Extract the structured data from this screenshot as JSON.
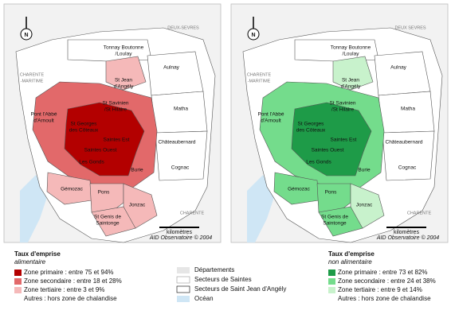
{
  "maps": [
    {
      "north": "N",
      "neighbors": [
        [
          "DEUX-SEVRES"
        ],
        [
          "CHARENTE",
          "-MARITIME"
        ],
        [
          "CHARENTE"
        ]
      ],
      "scale_label": "kilomètres",
      "credit": "AID Observatoire © 2004"
    },
    {
      "north": "N",
      "neighbors": [
        [
          "DEUX SEVRES"
        ],
        [
          "CHARENTE",
          "-MARITIME"
        ],
        [
          "CHARENTE"
        ]
      ],
      "scale_label": "kilomètres",
      "credit": "AID Observatoire © 2004"
    }
  ],
  "regions": [
    {
      "lines": [
        "Tonnay Boutonne",
        "/Loulay"
      ]
    },
    {
      "lines": [
        "Aulnay"
      ]
    },
    {
      "lines": [
        "St Jean",
        "d'Angély"
      ]
    },
    {
      "lines": [
        "St Savinien",
        "/St Hilaire"
      ]
    },
    {
      "lines": [
        "Matha"
      ]
    },
    {
      "lines": [
        "Pont l'Abbé",
        "d'Arnoult"
      ]
    },
    {
      "lines": [
        "St Georges",
        "des Côteaux"
      ]
    },
    {
      "lines": [
        "Saintes Est"
      ]
    },
    {
      "lines": [
        "Saintes Ouest"
      ]
    },
    {
      "lines": [
        "Les Gonds"
      ]
    },
    {
      "lines": [
        "Burie"
      ]
    },
    {
      "lines": [
        "Châteaubernard"
      ]
    },
    {
      "lines": [
        "Cognac"
      ]
    },
    {
      "lines": [
        "Gémozac"
      ]
    },
    {
      "lines": [
        "Pons"
      ]
    },
    {
      "lines": [
        "Jonzac"
      ]
    },
    {
      "lines": [
        "St Genis de",
        "Saintonge"
      ]
    }
  ],
  "legends": [
    {
      "title": "Taux d'emprise",
      "subtitle": "alimentaire",
      "items": [
        {
          "label": "Zone primaire : entre 75 et 94%",
          "color": "#b30000"
        },
        {
          "label": "Zone secondaire : entre 18 et 28%",
          "color": "#e2696a"
        },
        {
          "label": "Zone tertiaire : entre 3 et 9%",
          "color": "#f5b9b9"
        },
        {
          "label": "Autres : hors zone de chalandise",
          "color": "#ffffff"
        }
      ]
    },
    {
      "title": "Taux d'emprise",
      "subtitle": "non alimentaire",
      "items": [
        {
          "label": "Zone primaire : entre 73 et 82%",
          "color": "#1e9b48"
        },
        {
          "label": "Zone secondaire : entre 24 et 38%",
          "color": "#74dc8c"
        },
        {
          "label": "Zone tertiaire : entre 9 et 14%",
          "color": "#c8f2cc"
        },
        {
          "label": "Autres : hors zone de chalandise",
          "color": "#ffffff"
        }
      ]
    }
  ],
  "key": [
    {
      "label": "Départements",
      "color": "#e6e6e6"
    },
    {
      "label": "Secteurs de Saintes",
      "color": "#ffffff"
    },
    {
      "label": "Secteurs de Saint Jean d'Angély",
      "color": "#ffffff"
    },
    {
      "label": "Océan",
      "color": "#cfe6f5"
    }
  ]
}
